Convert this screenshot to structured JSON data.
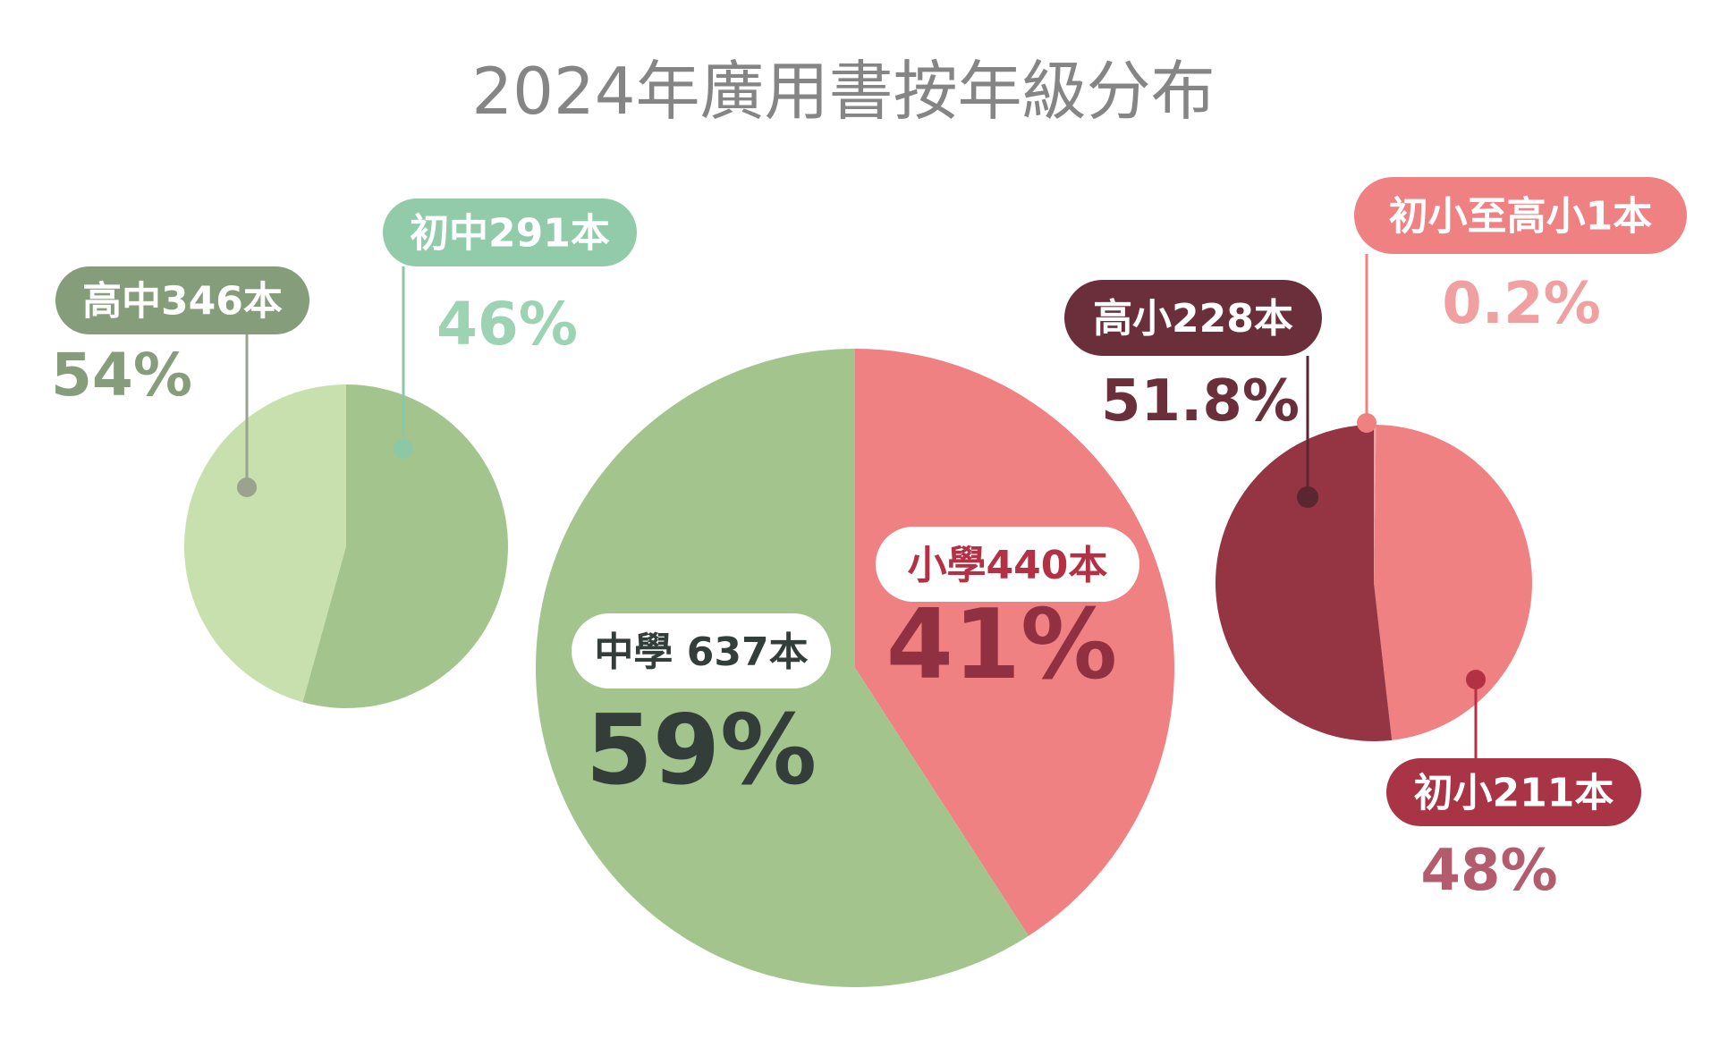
{
  "title": "2024年廣用書按年級分布",
  "chart_data": [
    {
      "type": "pie",
      "name": "secondary",
      "slices": [
        {
          "label": "高中346本",
          "value": 346,
          "percent_label": "54%",
          "color": "#a4c48e",
          "pill_color": "#869d7b",
          "pill_text_color": "#ffffff",
          "pct_color": "#869d7b",
          "dot_color": "#9aa38e"
        },
        {
          "label": "初中291本",
          "value": 291,
          "percent_label": "46%",
          "color": "#c8dfae",
          "pill_color": "#91cba9",
          "pill_text_color": "#ffffff",
          "pct_color": "#9bd3b3",
          "dot_color": "#8cc8a5"
        }
      ]
    },
    {
      "type": "pie",
      "name": "total",
      "slices": [
        {
          "label": "中學 637本",
          "value": 637,
          "percent_label": "59%",
          "color": "#a4c48e",
          "pill_color": "#ffffff",
          "pill_text_color": "#333d3a",
          "pct_color": "#333d3a"
        },
        {
          "label": "小學440本",
          "value": 440,
          "percent_label": "41%",
          "color": "#ef8182",
          "pill_color": "#ffffff",
          "pill_text_color": "#b23145",
          "pct_color": "#913040"
        }
      ]
    },
    {
      "type": "pie",
      "name": "primary",
      "slices": [
        {
          "label": "初小211本",
          "value": 211,
          "percent_label": "48%",
          "color": "#ef8182",
          "pill_color": "#a93446",
          "pill_text_color": "#ffffff",
          "pct_color": "#b25c6e",
          "dot_color": "#b23145"
        },
        {
          "label": "高小228本",
          "value": 228,
          "percent_label": "51.8%",
          "color": "#953442",
          "pill_color": "#6b2f3c",
          "pill_text_color": "#ffffff",
          "pct_color": "#6b2f3c",
          "dot_color": "#5a2630"
        },
        {
          "label": "初小至高小1本",
          "value": 1,
          "percent_label": "0.2%",
          "color": "#e8a4a4",
          "pill_color": "#ef8182",
          "pill_text_color": "#ffffff",
          "pct_color": "#f0a0a0",
          "dot_color": "#ef8182"
        }
      ]
    }
  ]
}
